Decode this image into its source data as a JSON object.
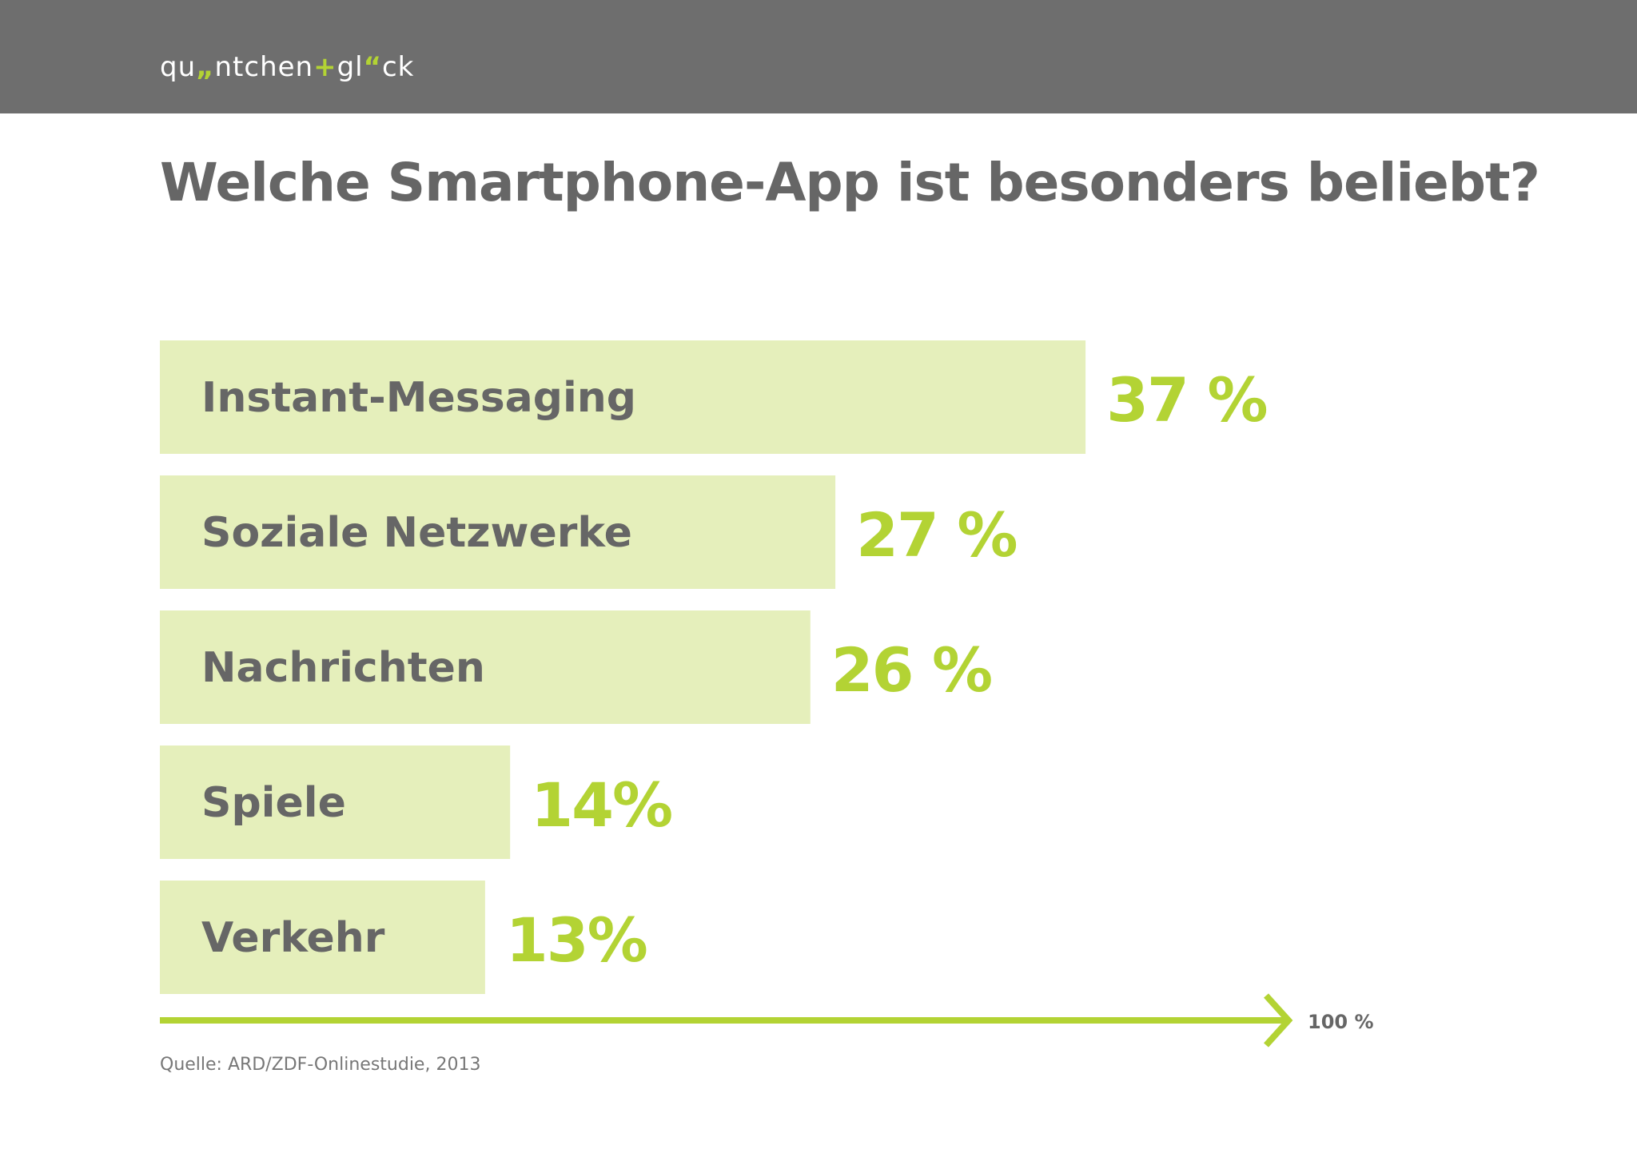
{
  "header": {
    "logo": {
      "part1": "qu",
      "mark1": "„",
      "part2": "ntchen",
      "mark2": "+",
      "part3": "gl",
      "mark3": "“",
      "part4": "ck"
    }
  },
  "colors": {
    "header_bg": "#6e6e6e",
    "bar_fill": "#e5efbb",
    "accent": "#b3d334",
    "text_gray": "#666666"
  },
  "chart_data": {
    "type": "bar",
    "orientation": "horizontal",
    "title": "Welche Smartphone-App ist besonders beliebt?",
    "categories": [
      "Instant-Messaging",
      "Soziale Netzwerke",
      "Nachrichten",
      "Spiele",
      "Verkehr"
    ],
    "values": [
      37,
      27,
      26,
      14,
      13
    ],
    "value_labels": [
      "37 %",
      "27 %",
      "26 %",
      "14%",
      "13%"
    ],
    "xlim": [
      0,
      45
    ],
    "axis_end_label": "100 %",
    "grid": false,
    "legend": "none"
  },
  "source": "Quelle: ARD/ZDF-Onlinestudie, 2013"
}
